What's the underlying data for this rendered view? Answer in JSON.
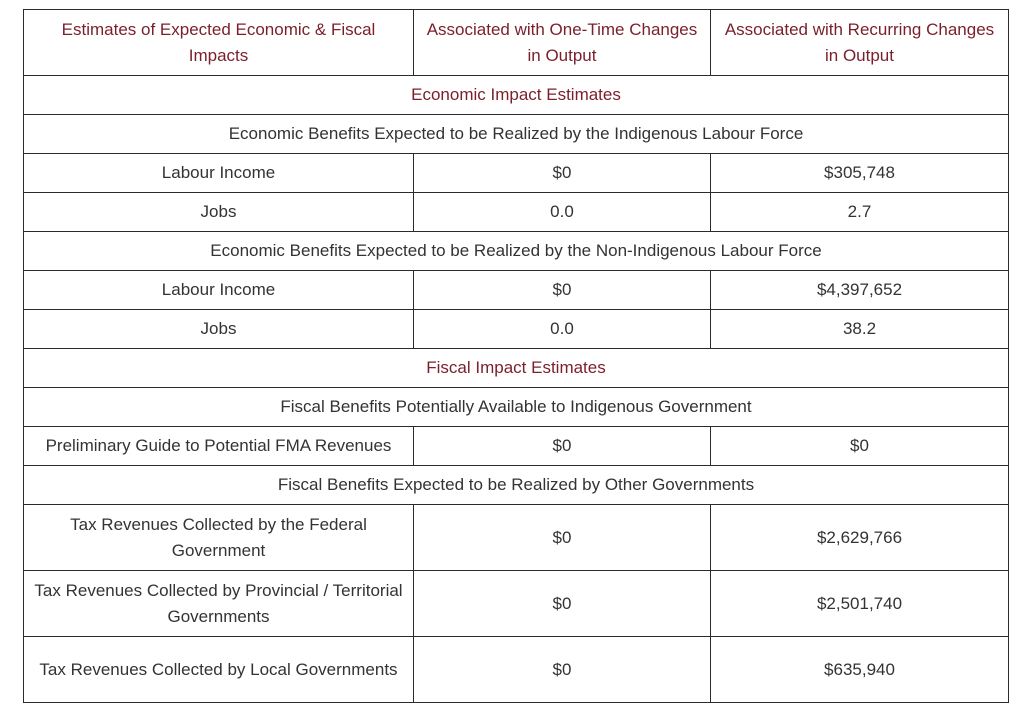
{
  "headers": [
    "Estimates of Expected Economic & Fiscal Impacts",
    "Associated with One-Time Changes in Output",
    "Associated with Recurring Changes in Output"
  ],
  "sections": {
    "economic": "Economic Impact Estimates",
    "fiscal": "Fiscal Impact Estimates"
  },
  "subsections": {
    "indigenous_labour": "Economic Benefits Expected to be Realized by the Indigenous Labour Force",
    "non_indigenous_labour": "Economic Benefits Expected to be Realized by the Non-Indigenous Labour Force",
    "indigenous_gov": "Fiscal Benefits Potentially Available to Indigenous Government",
    "other_gov": "Fiscal Benefits Expected to be Realized by Other Governments"
  },
  "rows": {
    "ind_income": {
      "label": "Labour Income",
      "one_time": "$0",
      "recurring": "$305,748"
    },
    "ind_jobs": {
      "label": "Jobs",
      "one_time": "0.0",
      "recurring": "2.7"
    },
    "non_income": {
      "label": "Labour Income",
      "one_time": "$0",
      "recurring": "$4,397,652"
    },
    "non_jobs": {
      "label": "Jobs",
      "one_time": "0.0",
      "recurring": "38.2"
    },
    "fma": {
      "label": "Preliminary Guide to Potential FMA Revenues",
      "one_time": "$0",
      "recurring": "$0"
    },
    "federal": {
      "label": "Tax Revenues Collected by the Federal Government",
      "one_time": "$0",
      "recurring": "$2,629,766"
    },
    "provincial": {
      "label": "Tax Revenues Collected by Provincial / Territorial Governments",
      "one_time": "$0",
      "recurring": "$2,501,740"
    },
    "local": {
      "label": "Tax Revenues Collected by Local Governments",
      "one_time": "$0",
      "recurring": "$635,940"
    }
  }
}
